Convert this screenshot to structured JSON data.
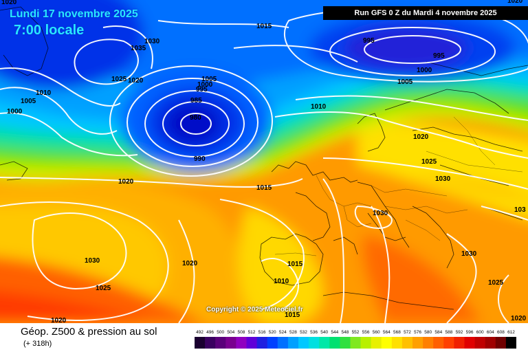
{
  "map": {
    "title_date": "Lundi 17 novembre 2025",
    "title_time": "7:00 locale",
    "run_info": "Run GFS 0 Z du Mardi 4 novembre 2025",
    "copyright": "Copyright © 2025 Meteociel.fr",
    "legend_title": "Géop. Z500 & pression au sol",
    "legend_subtitle": "(+ 318h)"
  },
  "isobar_labels": [
    {
      "id": "l1",
      "text": "1020"
    },
    {
      "id": "l2",
      "text": "1015"
    },
    {
      "id": "l3",
      "text": "1030"
    },
    {
      "id": "l4",
      "text": "1035"
    },
    {
      "id": "l5",
      "text": "995"
    },
    {
      "id": "l6",
      "text": "995"
    },
    {
      "id": "l7",
      "text": "1000"
    },
    {
      "id": "l8",
      "text": "1005"
    },
    {
      "id": "l9",
      "text": "1020"
    },
    {
      "id": "l10",
      "text": "1010"
    },
    {
      "id": "l11",
      "text": "1005"
    },
    {
      "id": "l12",
      "text": "1000"
    },
    {
      "id": "l13",
      "text": "1025"
    },
    {
      "id": "l14",
      "text": "1020"
    },
    {
      "id": "l15",
      "text": "1005"
    },
    {
      "id": "l16",
      "text": "1000"
    },
    {
      "id": "l17",
      "text": "995"
    },
    {
      "id": "l18",
      "text": "985"
    },
    {
      "id": "l19",
      "text": "980"
    },
    {
      "id": "l20",
      "text": "990"
    },
    {
      "id": "l21",
      "text": "1010"
    },
    {
      "id": "l22",
      "text": "1020"
    },
    {
      "id": "l23",
      "text": "1025"
    },
    {
      "id": "l24",
      "text": "1030"
    },
    {
      "id": "l25",
      "text": "1020"
    },
    {
      "id": "l26",
      "text": "1015"
    },
    {
      "id": "l27",
      "text": "1030"
    },
    {
      "id": "l28",
      "text": "1030"
    },
    {
      "id": "l29",
      "text": "1020"
    },
    {
      "id": "l30",
      "text": "1025"
    },
    {
      "id": "l31",
      "text": "1015"
    },
    {
      "id": "l32",
      "text": "1010"
    },
    {
      "id": "l33",
      "text": "1030"
    },
    {
      "id": "l34",
      "text": "1025"
    },
    {
      "id": "l35",
      "text": "1020"
    },
    {
      "id": "l36",
      "text": "1020"
    },
    {
      "id": "l37",
      "text": "103"
    },
    {
      "id": "l38",
      "text": "1015"
    }
  ],
  "scale": {
    "values": [
      492,
      496,
      500,
      504,
      508,
      512,
      516,
      520,
      524,
      528,
      532,
      536,
      540,
      544,
      548,
      552,
      556,
      560,
      564,
      568,
      572,
      576,
      580,
      584,
      588,
      592,
      596,
      600,
      604,
      608,
      612
    ],
    "colors": [
      "#1a0030",
      "#3a0060",
      "#5a007a",
      "#7a0090",
      "#9000c0",
      "#6000d8",
      "#2020e0",
      "#0040ff",
      "#0070ff",
      "#00a0ff",
      "#00c8ff",
      "#00e0e0",
      "#00e8a8",
      "#00e070",
      "#30e040",
      "#80e820",
      "#b8f000",
      "#e8f000",
      "#ffff00",
      "#ffe000",
      "#ffc000",
      "#ffa000",
      "#ff8000",
      "#ff6000",
      "#ff4000",
      "#f02000",
      "#e00000",
      "#c00000",
      "#a00000",
      "#700000",
      "#000000"
    ]
  },
  "colors": {
    "deep_low": "#0010c8",
    "title_cyan": "#29e6ff"
  }
}
